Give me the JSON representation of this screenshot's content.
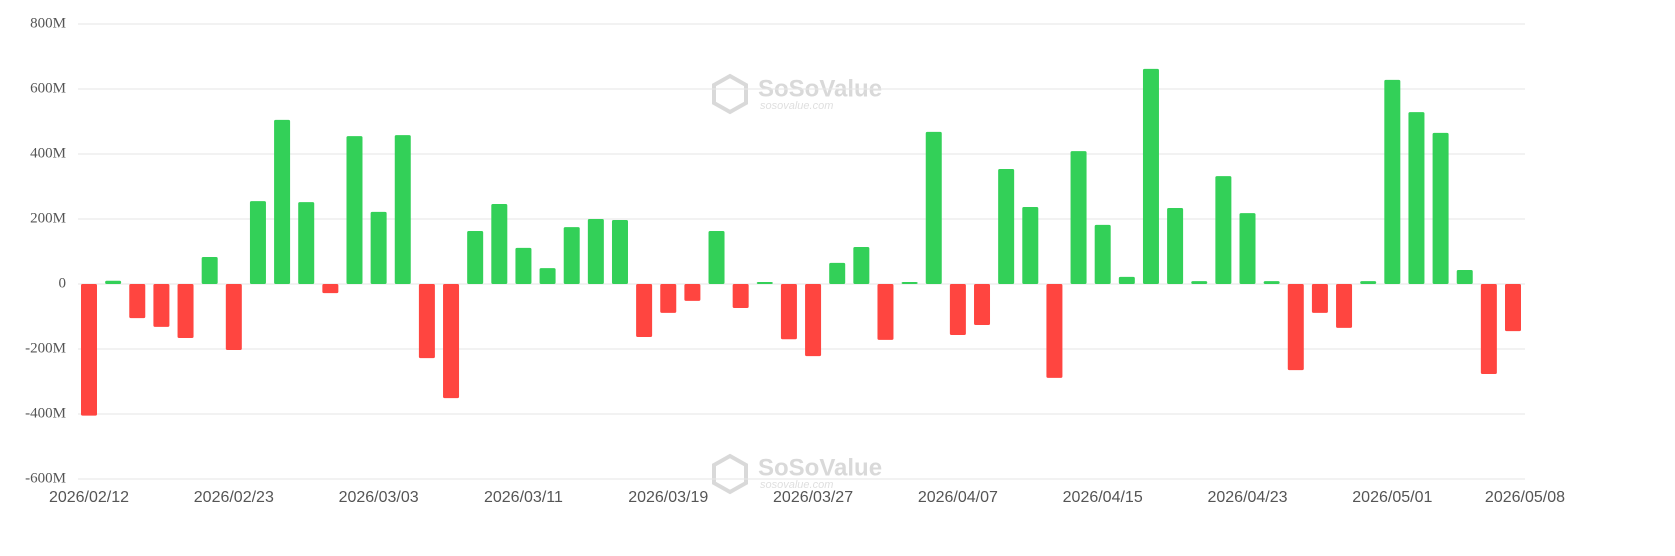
{
  "chart_data": {
    "type": "bar",
    "watermark": {
      "brand": "SoSoValue",
      "site": "sosovalue.com"
    },
    "categories": [
      "2026/02/12",
      null,
      null,
      null,
      null,
      null,
      "2026/02/23",
      null,
      null,
      null,
      null,
      null,
      "2026/03/03",
      null,
      null,
      null,
      null,
      null,
      "2026/03/11",
      null,
      null,
      null,
      null,
      null,
      "2026/03/19",
      null,
      null,
      null,
      null,
      null,
      "2026/03/27",
      null,
      null,
      null,
      null,
      null,
      "2026/04/07",
      null,
      null,
      null,
      null,
      null,
      "2026/04/15",
      null,
      null,
      null,
      null,
      null,
      "2026/04/23",
      null,
      null,
      null,
      null,
      null,
      "2026/05/01",
      null,
      null,
      null,
      null,
      "2026/05/08"
    ],
    "values": [
      -405,
      10,
      -105,
      -132,
      -166,
      83,
      -203,
      255,
      505,
      252,
      -28,
      455,
      222,
      458,
      -228,
      -351,
      163,
      246,
      111,
      49,
      175,
      200,
      197,
      -163,
      -89,
      -52,
      163,
      -74,
      6,
      -170,
      -222,
      65,
      114,
      -172,
      6,
      468,
      -157,
      -126,
      354,
      237,
      -289,
      409,
      182,
      22,
      662,
      234,
      9,
      332,
      218,
      9,
      -265,
      -89,
      -135,
      9,
      628,
      529,
      465,
      43,
      -277,
      -145
    ],
    "positive_color": "#33d058",
    "negative_color": "#ff4540",
    "ylim": [
      -600,
      800
    ],
    "yticks": [
      {
        "value": -600,
        "label": "-600M"
      },
      {
        "value": -400,
        "label": "-400M"
      },
      {
        "value": -200,
        "label": "-200M"
      },
      0,
      {
        "value": 200,
        "label": "200M"
      },
      {
        "value": 400,
        "label": "400M"
      },
      {
        "value": 600,
        "label": "600M"
      },
      {
        "value": 800,
        "label": "800M"
      }
    ],
    "grid": true
  }
}
